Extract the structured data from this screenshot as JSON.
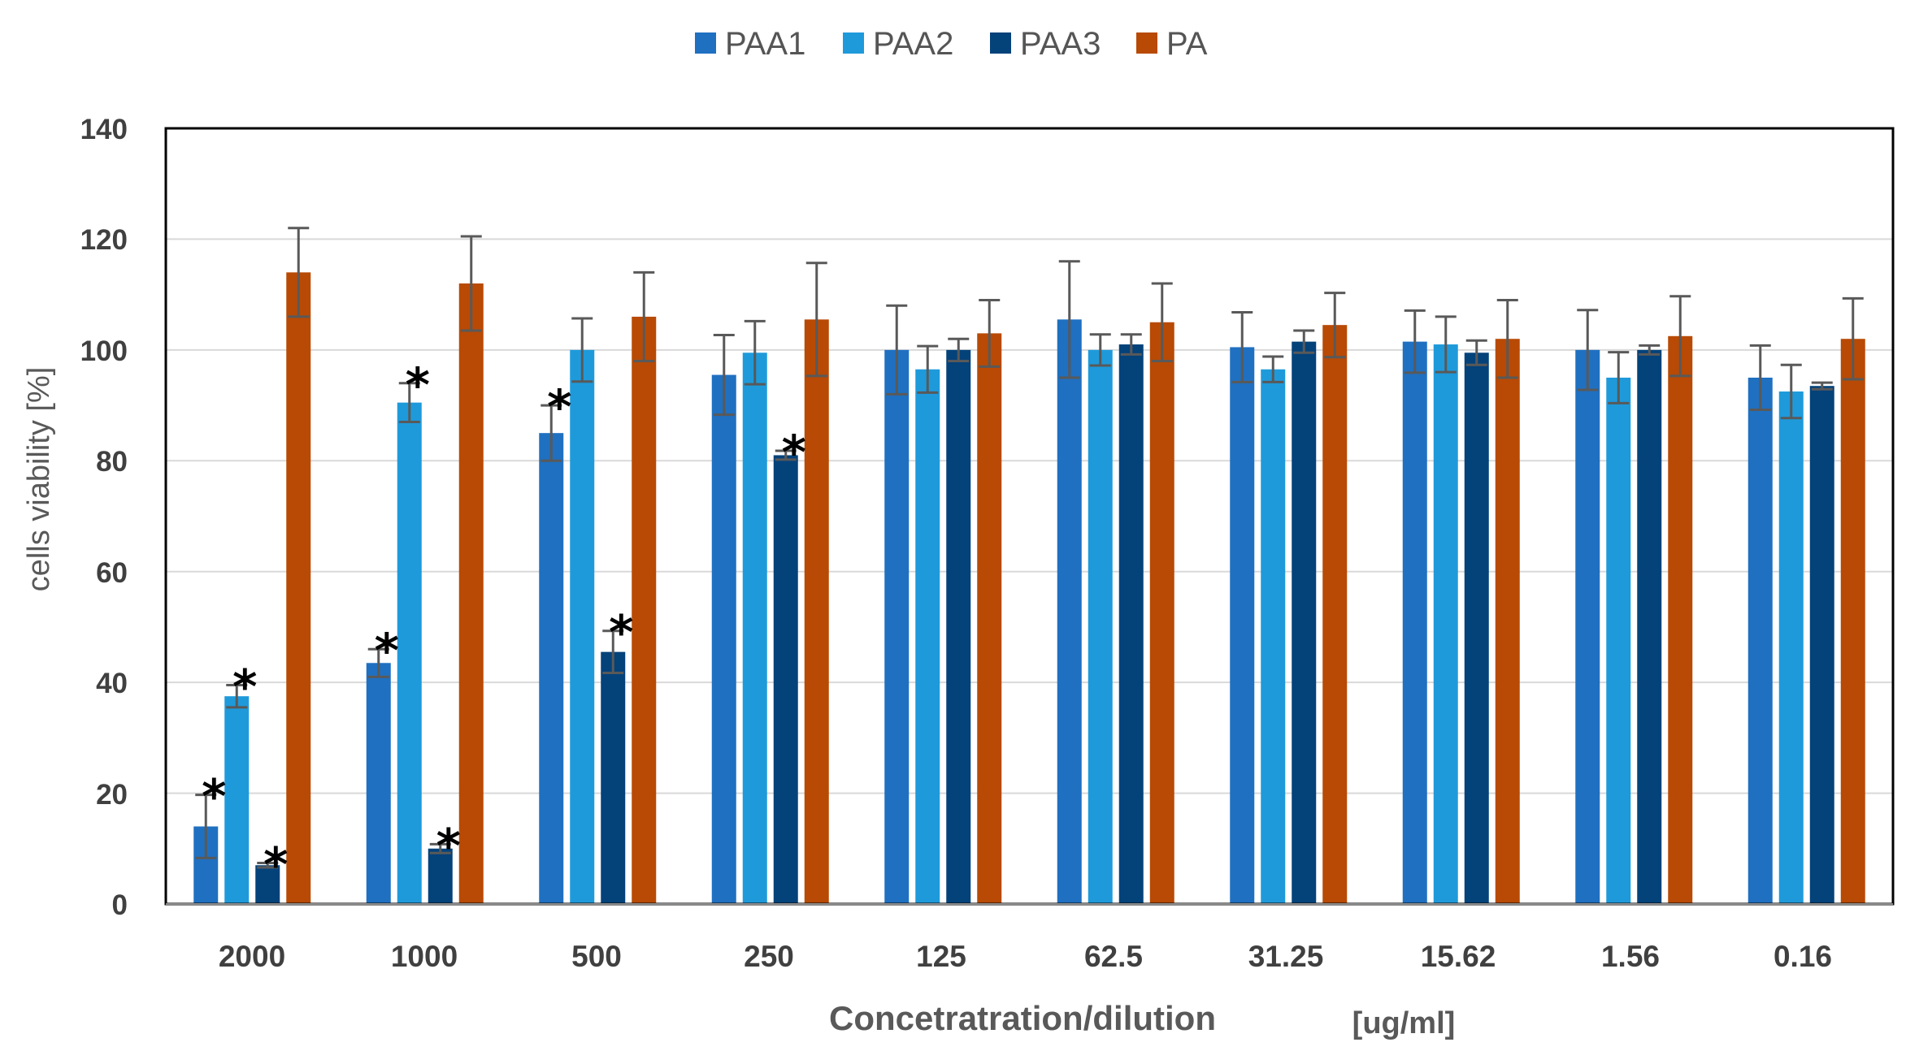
{
  "chart_data": {
    "type": "bar",
    "title": "",
    "xlabel": "Concetratration/dilution",
    "xunit": "[ug/ml]",
    "ylabel": "cells viability  [%]",
    "ylim": [
      0,
      140
    ],
    "yticks": [
      "0",
      "20",
      "40",
      "60",
      "80",
      "100",
      "120",
      "140"
    ],
    "grid": true,
    "legend_position": "top",
    "categories": [
      "2000",
      "1000",
      "500",
      "250",
      "125",
      "62.5",
      "31.25",
      "15.62",
      "1.56",
      "0.16"
    ],
    "significance_marker": "*",
    "series": [
      {
        "name": "PAA1",
        "color": "#1F70C1",
        "values": [
          14,
          43.5,
          85,
          95.5,
          100,
          105.5,
          100.5,
          101.5,
          100,
          95
        ],
        "errors": [
          5.7,
          2.5,
          5,
          7.2,
          8,
          10.5,
          6.3,
          5.6,
          7.2,
          5.8
        ],
        "significant": [
          true,
          true,
          true,
          false,
          false,
          false,
          false,
          false,
          false,
          false
        ]
      },
      {
        "name": "PAA2",
        "color": "#1E9ADB",
        "values": [
          37.5,
          90.5,
          100,
          99.5,
          96.5,
          100,
          96.5,
          101,
          95,
          92.5
        ],
        "errors": [
          2,
          3.5,
          5.7,
          5.7,
          4.2,
          2.8,
          2.3,
          5,
          4.6,
          4.8
        ],
        "significant": [
          true,
          true,
          false,
          false,
          false,
          false,
          false,
          false,
          false,
          false
        ]
      },
      {
        "name": "PAA3",
        "color": "#04427A",
        "values": [
          7,
          10,
          45.5,
          81,
          100,
          101,
          101.5,
          99.5,
          100,
          93.5
        ],
        "errors": [
          0.4,
          0.8,
          3.8,
          0.8,
          2,
          1.8,
          2,
          2.2,
          0.8,
          0.6
        ],
        "significant": [
          true,
          true,
          true,
          true,
          false,
          false,
          false,
          false,
          false,
          false
        ]
      },
      {
        "name": "PA",
        "color": "#B84A05",
        "values": [
          114,
          112,
          106,
          105.5,
          103,
          105,
          104.5,
          102,
          102.5,
          102
        ],
        "errors": [
          8,
          8.5,
          8,
          10.2,
          6,
          7,
          5.8,
          7,
          7.2,
          7.3
        ],
        "significant": [
          false,
          false,
          false,
          false,
          false,
          false,
          false,
          false,
          false,
          false
        ]
      }
    ]
  }
}
